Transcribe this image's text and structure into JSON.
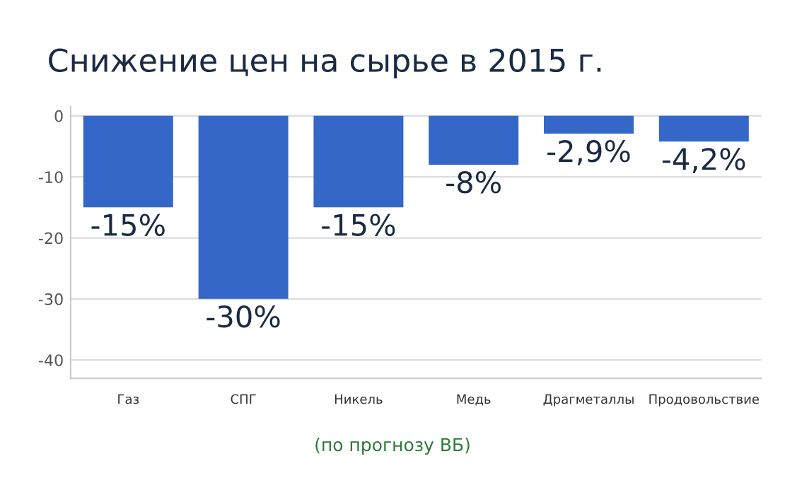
{
  "chart_data": {
    "type": "bar",
    "title": "Снижение цен на сырье в 2015 г.",
    "categories": [
      "Газ",
      "СПГ",
      "Никель",
      "Медь",
      "Драгметаллы",
      "Продовольствие"
    ],
    "values": [
      -15,
      -30,
      -15,
      -8,
      -2.9,
      -4.2
    ],
    "value_labels": [
      "-15%",
      "-30%",
      "-15%",
      "-8%",
      "-2,9%",
      "-4,2%"
    ],
    "color": "#3567c8",
    "ylim": [
      -43,
      1.5
    ],
    "yticks": [
      0,
      -10,
      -20,
      -30,
      -40
    ],
    "grid": "y",
    "annotations": [
      "(по прогнозу ВБ)"
    ]
  }
}
